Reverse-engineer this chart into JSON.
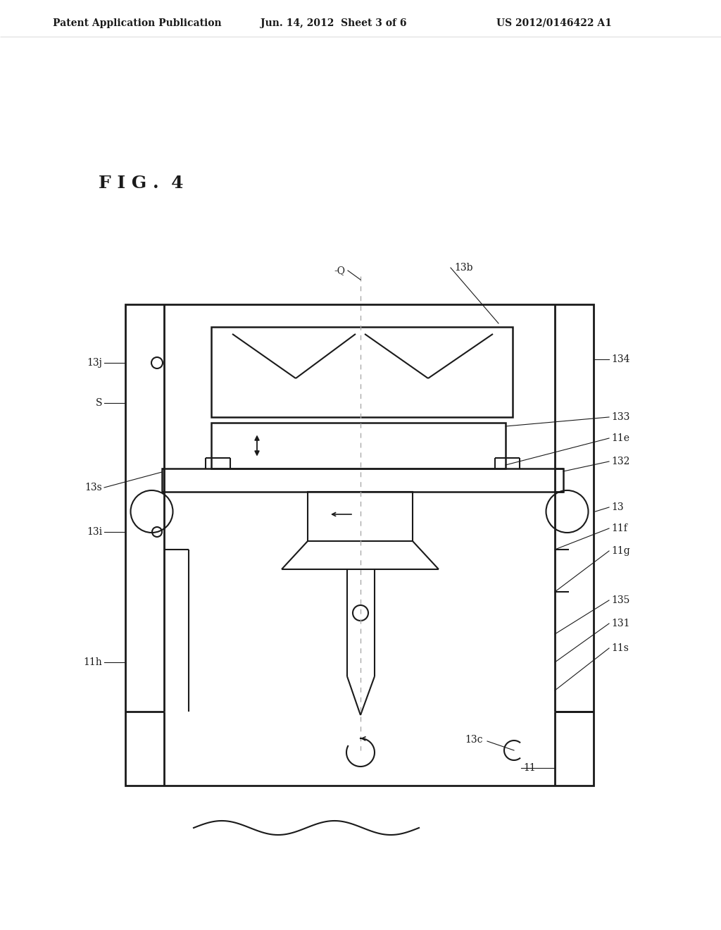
{
  "bg_color": "#ffffff",
  "line_color": "#1a1a1a",
  "dashed_color": "#aaaaaa",
  "header_left": "Patent Application Publication",
  "header_mid": "Jun. 14, 2012  Sheet 3 of 6",
  "header_right": "US 2012/0146422 A1",
  "fig_label": "F I G .  4"
}
